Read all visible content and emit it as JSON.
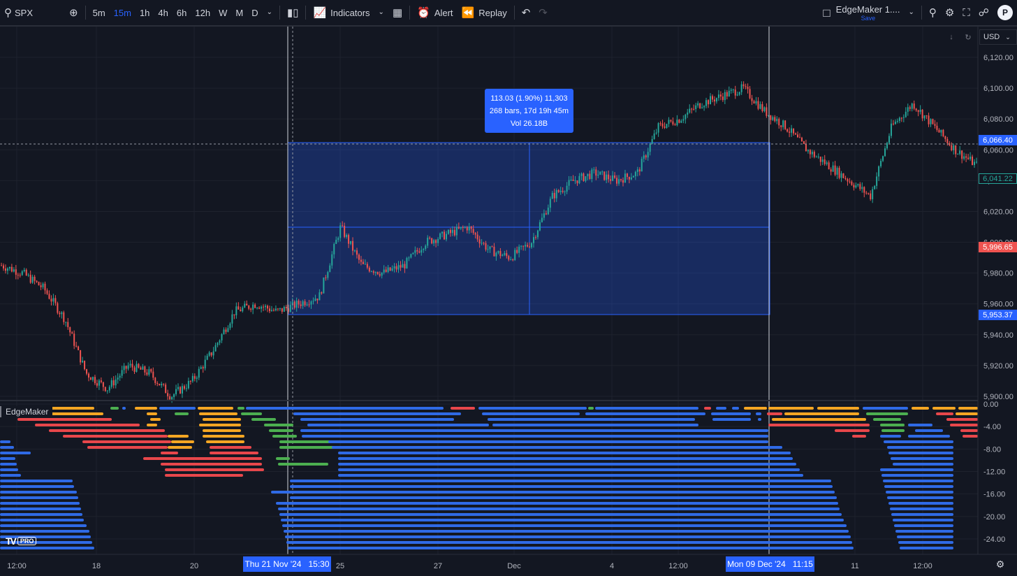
{
  "toolbar": {
    "symbol": "SPX",
    "intervals": [
      "5m",
      "15m",
      "1h",
      "4h",
      "6h",
      "12h",
      "W",
      "M",
      "D"
    ],
    "active_interval": "15m",
    "indicators_label": "Indicators",
    "alert_label": "Alert",
    "replay_label": "Replay",
    "layout_name": "EdgeMaker 1....",
    "layout_save": "Save",
    "avatar_letter": "P"
  },
  "price_axis": {
    "currency": "USD",
    "ticks": [
      "6,120.00",
      "6,100.00",
      "6,080.00",
      "6,060.00",
      "6,040.00",
      "6,020.00",
      "6,000.00",
      "5,980.00",
      "5,960.00",
      "5,940.00",
      "5,920.00",
      "5,900.00"
    ],
    "tags": {
      "range_top": "6,066.40",
      "last_price": "6,041.22",
      "crosshair": "5,996.65",
      "range_bottom": "5,953.37"
    }
  },
  "indicator_axis": {
    "ticks": [
      "0.00",
      "-4.00",
      "-8.00",
      "-12.00",
      "-16.00",
      "-20.00",
      "-24.00"
    ]
  },
  "indicator": {
    "name": "EdgeMaker"
  },
  "measure_tooltip": {
    "line1": "113.03 (1.90%) 11,303",
    "line2": "268 bars, 17d 19h 45m",
    "line3": "Vol 26.18B"
  },
  "time_axis": {
    "labels": [
      "12:00",
      "18",
      "20",
      "25",
      "27",
      "Dec",
      "4",
      "12:00",
      "11",
      "12:00"
    ],
    "start_tag": "Thu 21 Nov '24   15:30",
    "end_tag": "Mon 09 Dec '24   11:15"
  },
  "branding": {
    "logo_text": "TV",
    "pro_badge": "PRO"
  },
  "colors": {
    "background": "#131722",
    "up": "#26a69a",
    "down": "#ef5350",
    "accent": "#2962ff",
    "bar_blue": "#2f6ae6",
    "bar_orange": "#f5a623",
    "bar_red": "#e8474b",
    "bar_green": "#4caf50"
  },
  "chart_data": {
    "type": "candlestick",
    "ylim": [
      5900,
      6130
    ],
    "approx_close_path": [
      5985,
      5980,
      5970,
      5950,
      5915,
      5905,
      5920,
      5915,
      5900,
      5910,
      5930,
      5955,
      5960,
      5955,
      5960,
      5965,
      6010,
      5985,
      5980,
      5985,
      6000,
      6005,
      6010,
      5995,
      5990,
      6000,
      6030,
      6040,
      6045,
      6040,
      6045,
      6075,
      6080,
      6090,
      6095,
      6100,
      6085,
      6075,
      6060,
      6050,
      6040,
      6030,
      6075,
      6090,
      6075,
      6060,
      6050
    ]
  }
}
